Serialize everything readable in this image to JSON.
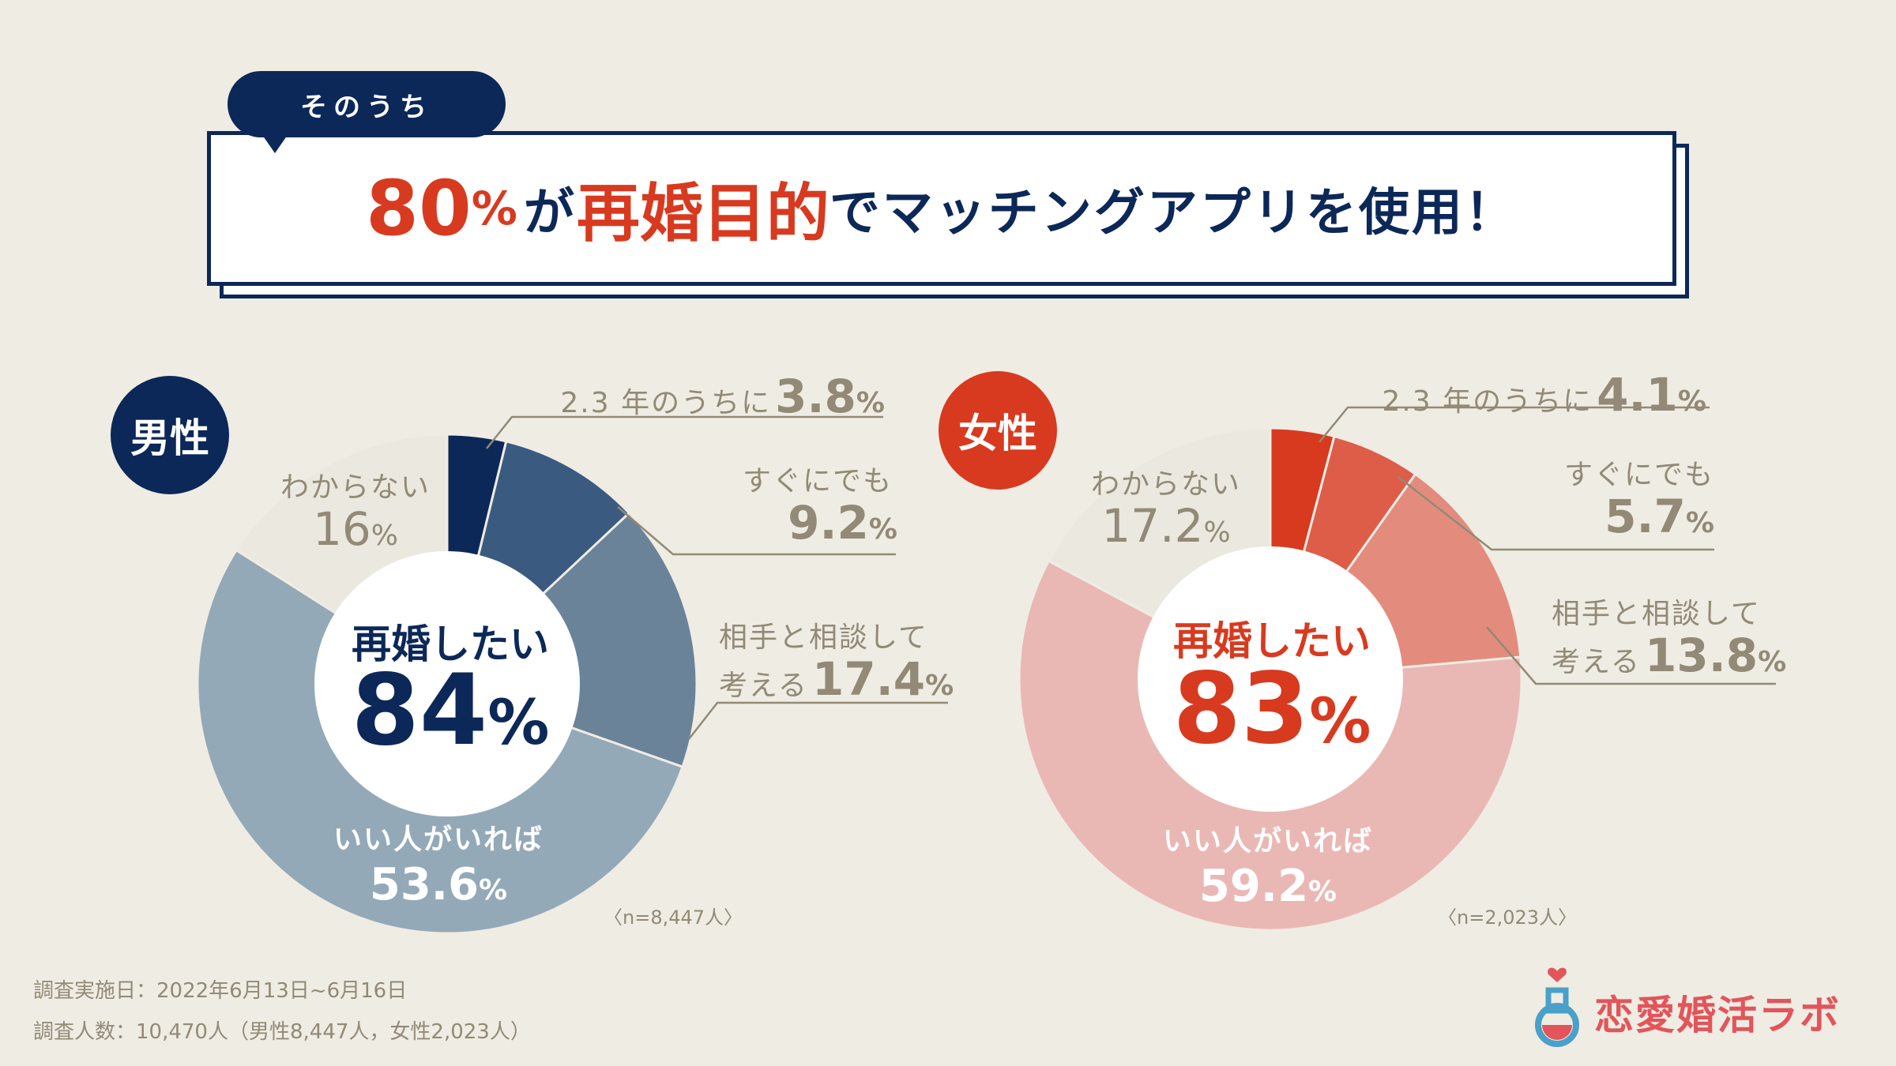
{
  "header": {
    "bubble": "そのうち",
    "title_big": "80",
    "title_pct": "%",
    "title_part1": "が",
    "title_red": "再婚目的",
    "title_part2": "でマッチングアプリを使用！"
  },
  "colors": {
    "navy": "#0c2858",
    "red": "#d83a1f",
    "beige": "#efece4",
    "gray_text": "#928a76",
    "logo": "#e2555a"
  },
  "chart_data": [
    {
      "type": "pie",
      "title": "男性",
      "center_label": "再婚したい",
      "center_value": "84",
      "center_unit": "%",
      "sample": "〈n=8,447人〉",
      "slices": [
        {
          "label": "2.3 年のうちに",
          "value": 3.8,
          "value_text": "3.8",
          "color": "#0c2858"
        },
        {
          "label": "すぐにでも",
          "value": 9.2,
          "value_text": "9.2",
          "color": "#3a5a80"
        },
        {
          "label": "相手と相談して考える",
          "label_line1": "相手と相談して",
          "label_line2": "考える",
          "value": 17.4,
          "value_text": "17.4",
          "color": "#6a8399"
        },
        {
          "label": "いい人がいれば",
          "value": 53.6,
          "value_text": "53.6",
          "color": "#93a9b8"
        },
        {
          "label": "わからない",
          "value": 16,
          "value_text": "16",
          "color": "#ebe8e0"
        }
      ]
    },
    {
      "type": "pie",
      "title": "女性",
      "center_label": "再婚したい",
      "center_value": "83",
      "center_unit": "%",
      "sample": "〈n=2,023人〉",
      "slices": [
        {
          "label": "2.3 年のうちに",
          "value": 4.1,
          "value_text": "4.1",
          "color": "#d83a1f"
        },
        {
          "label": "すぐにでも",
          "value": 5.7,
          "value_text": "5.7",
          "color": "#de5d49"
        },
        {
          "label": "相手と相談して考える",
          "label_line1": "相手と相談して",
          "label_line2": "考える",
          "value": 13.8,
          "value_text": "13.8",
          "color": "#e38c7e"
        },
        {
          "label": "いい人がいれば",
          "value": 59.2,
          "value_text": "59.2",
          "color": "#eab8b4"
        },
        {
          "label": "わからない",
          "value": 17.2,
          "value_text": "17.2",
          "color": "#ebe8e0"
        }
      ]
    }
  ],
  "footer": {
    "date": "調査実施日：2022年6月13日~6月16日",
    "count": "調査人数：10,470人（男性8,447人，女性2,023人）"
  },
  "logo": {
    "text": "恋愛婚活ラボ"
  }
}
